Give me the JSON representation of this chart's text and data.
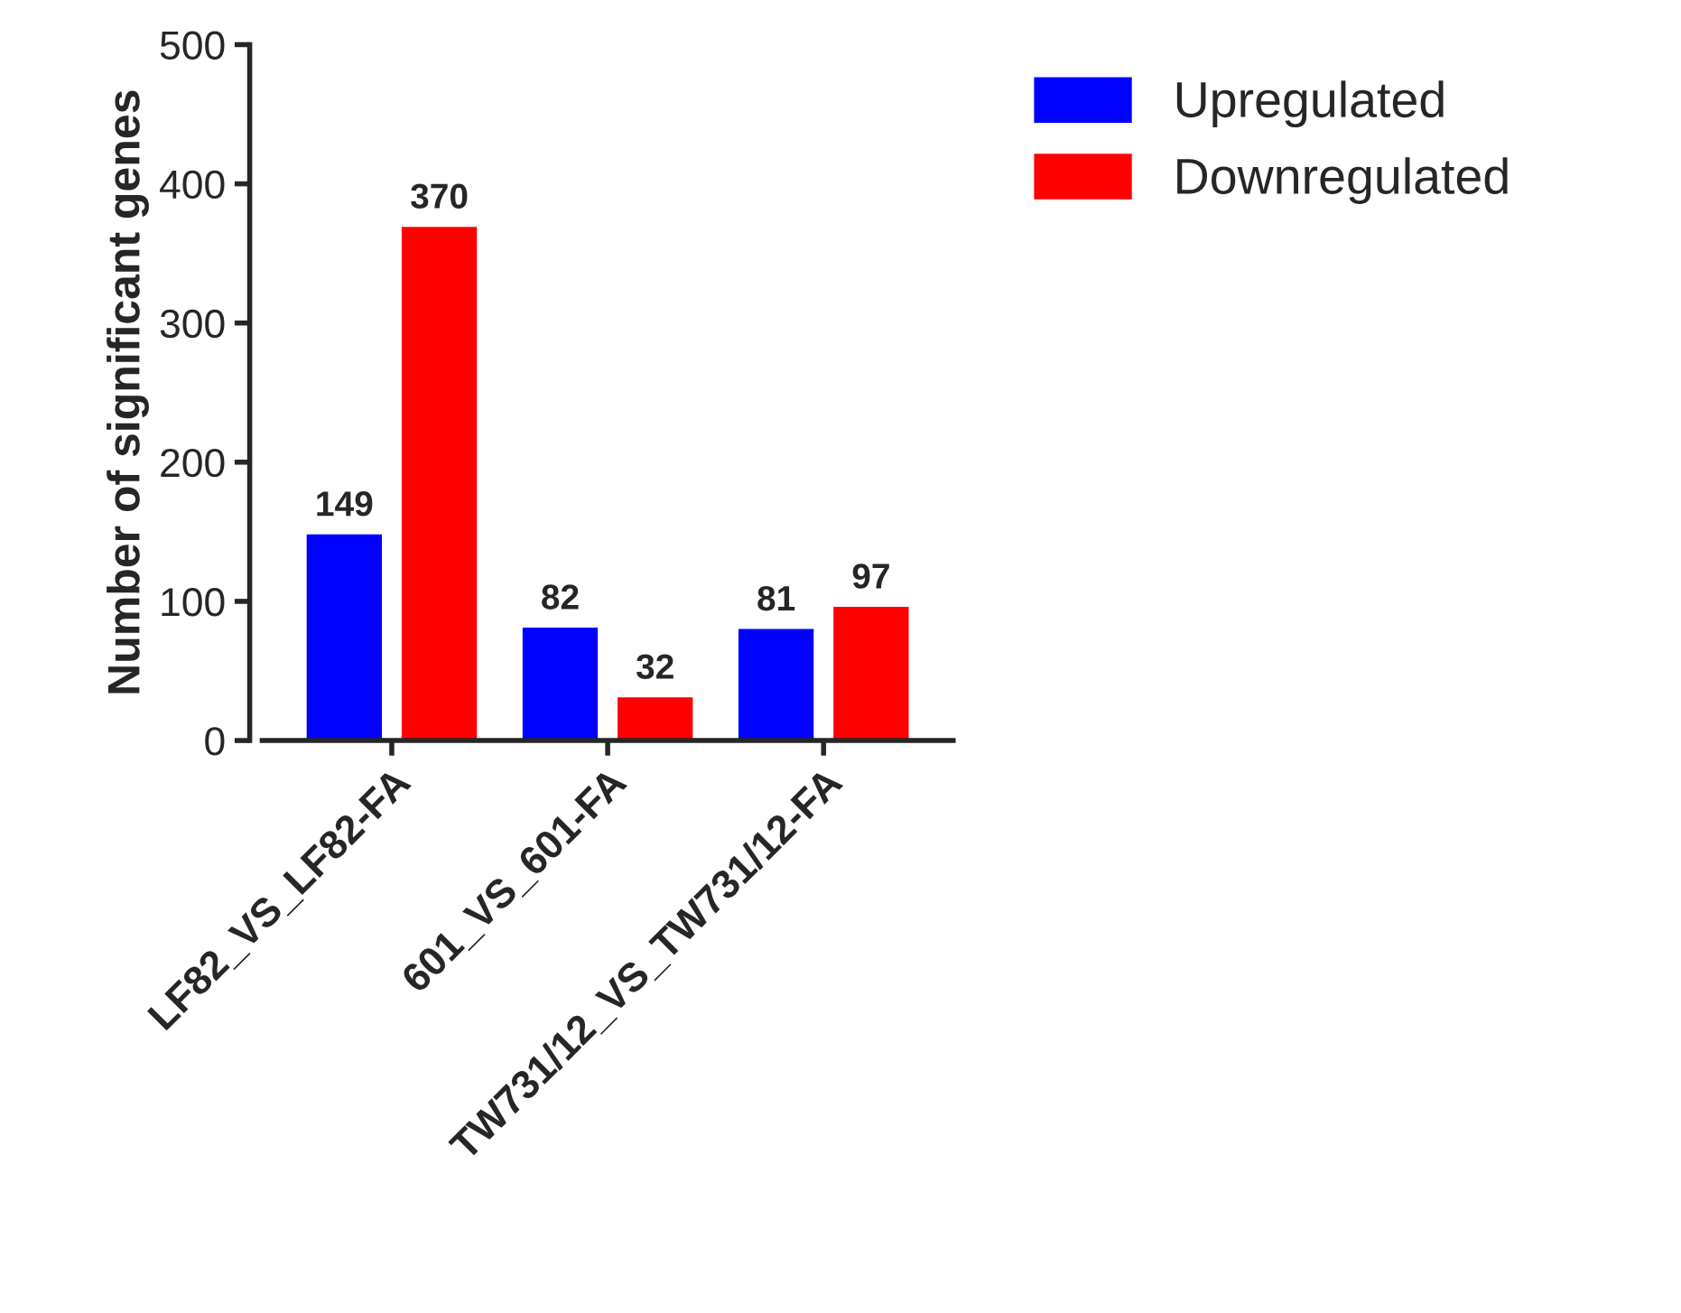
{
  "chart_data": {
    "type": "bar",
    "ylabel": "Number of significant genes",
    "categories": [
      "LF82_VS_LF82-FA",
      "601_VS_601-FA",
      "TW731/12_VS_TW731/12-FA"
    ],
    "series": [
      {
        "name": "Upregulated",
        "color": "#0000ff",
        "values": [
          149,
          82,
          81
        ]
      },
      {
        "name": "Downregulated",
        "color": "#ff0000",
        "values": [
          370,
          32,
          97
        ]
      }
    ],
    "ylim": [
      0,
      500
    ],
    "yticks": [
      0,
      100,
      200,
      300,
      400,
      500
    ],
    "data_labels": true,
    "grid": false,
    "legend": "top right"
  }
}
